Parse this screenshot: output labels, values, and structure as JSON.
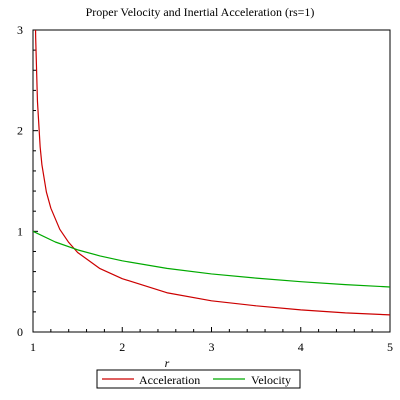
{
  "chart_data": {
    "type": "line",
    "title": "Proper Velocity and Inertial Acceleration (rs=1)",
    "xlabel": "r",
    "ylabel": "",
    "xlim": [
      1,
      5
    ],
    "ylim": [
      0,
      3
    ],
    "x_ticks": [
      "1",
      "2",
      "3",
      "4",
      "5"
    ],
    "y_ticks": [
      "0",
      "1",
      "2",
      "3"
    ],
    "grid": false,
    "legend_position": "bottom",
    "series": [
      {
        "name": "Acceleration",
        "color": "#cc0000",
        "x": [
          1.02,
          1.03,
          1.05,
          1.08,
          1.1,
          1.15,
          1.2,
          1.3,
          1.4,
          1.5,
          1.75,
          2.0,
          2.5,
          3.0,
          3.5,
          4.0,
          4.5,
          5.0
        ],
        "y": [
          3.54,
          2.92,
          2.29,
          1.84,
          1.66,
          1.39,
          1.23,
          1.02,
          0.89,
          0.79,
          0.63,
          0.53,
          0.39,
          0.31,
          0.26,
          0.22,
          0.19,
          0.17
        ]
      },
      {
        "name": "Velocity",
        "color": "#00aa00",
        "x": [
          1.0,
          1.25,
          1.5,
          1.75,
          2.0,
          2.5,
          3.0,
          3.5,
          4.0,
          4.5,
          5.0
        ],
        "y": [
          1.0,
          0.894,
          0.816,
          0.756,
          0.707,
          0.632,
          0.577,
          0.535,
          0.5,
          0.471,
          0.447
        ]
      }
    ]
  }
}
